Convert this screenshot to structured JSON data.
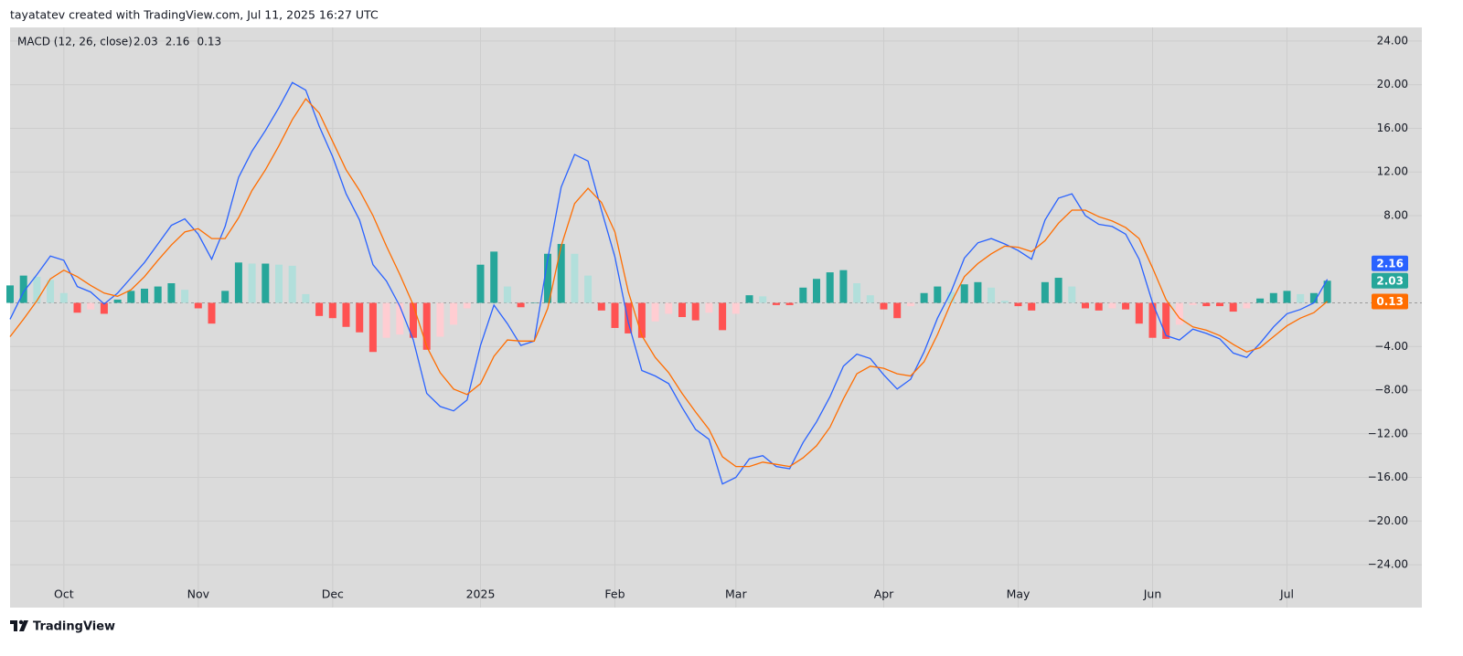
{
  "header": {
    "text": "tayatatev created with TradingView.com, Jul 11, 2025 16:27 UTC"
  },
  "chart_data": {
    "type": "macd",
    "title": "MACD (12, 26, close)",
    "categories": [
      null,
      null,
      null,
      null,
      "Oct",
      null,
      null,
      null,
      null,
      null,
      null,
      null,
      null,
      null,
      "Nov",
      null,
      null,
      null,
      null,
      null,
      null,
      null,
      null,
      null,
      "Dec",
      null,
      null,
      null,
      null,
      null,
      null,
      null,
      null,
      null,
      null,
      "2025",
      null,
      null,
      null,
      null,
      null,
      null,
      null,
      null,
      null,
      "Feb",
      null,
      null,
      null,
      null,
      null,
      null,
      null,
      null,
      "Mar",
      null,
      null,
      null,
      null,
      null,
      null,
      null,
      null,
      null,
      null,
      "Apr",
      null,
      null,
      null,
      null,
      null,
      null,
      null,
      null,
      null,
      "May",
      null,
      null,
      null,
      null,
      null,
      null,
      null,
      null,
      null,
      "Jun",
      null,
      null,
      null,
      null,
      null,
      null,
      null,
      null,
      null,
      "Jul",
      null,
      null,
      null
    ],
    "series": [
      {
        "type": "histogram",
        "color": "#26a69a",
        "colors": [
          "#26a69a",
          "#b2dfdb",
          "#ffcdd2",
          "#ff5252"
        ],
        "values": [
          1.6,
          2.5,
          2.4,
          2.1,
          0.9,
          -0.9,
          -0.6,
          -1.0,
          0.3,
          1.1,
          1.3,
          1.5,
          1.8,
          1.2,
          -0.5,
          -1.9,
          1.1,
          3.7,
          3.6,
          3.6,
          3.5,
          3.4,
          0.8,
          -1.2,
          -1.4,
          -2.2,
          -2.7,
          -4.5,
          -3.2,
          -2.9,
          -3.2,
          -4.3,
          -3.1,
          -2.0,
          -0.5,
          3.5,
          4.7,
          1.5,
          -0.4,
          0.0,
          4.5,
          5.4,
          4.5,
          2.5,
          -0.7,
          -2.3,
          -2.8,
          -3.2,
          -1.7,
          -1.0,
          -1.3,
          -1.6,
          -0.9,
          -2.5,
          -1.0,
          0.7,
          0.6,
          -0.2,
          -0.2,
          1.4,
          2.2,
          2.8,
          3.0,
          1.8,
          0.7,
          -0.6,
          -1.4,
          -0.3,
          0.9,
          1.5,
          1.0,
          1.7,
          1.9,
          1.4,
          0.2,
          -0.3,
          -0.7,
          1.9,
          2.3,
          1.5,
          -0.5,
          -0.7,
          -0.5,
          -0.6,
          -1.9,
          -3.2,
          -3.3,
          -2.0,
          -0.2,
          -0.3,
          -0.3,
          -0.8,
          -0.5,
          0.4,
          0.9,
          1.1,
          0.8,
          0.9,
          2.03
        ]
      },
      {
        "type": "line",
        "color": "#2962ff",
        "values": [
          -1.5,
          1.0,
          2.6,
          4.3,
          3.9,
          1.5,
          1.0,
          -0.1,
          0.9,
          2.3,
          3.7,
          5.4,
          7.1,
          7.7,
          6.3,
          4.0,
          7.0,
          11.5,
          13.9,
          15.8,
          17.9,
          20.2,
          19.5,
          16.2,
          13.4,
          10.0,
          7.6,
          3.5,
          2.0,
          -0.3,
          -3.4,
          -8.3,
          -9.5,
          -9.9,
          -8.9,
          -3.9,
          -0.2,
          -1.9,
          -3.9,
          -3.5,
          4.0,
          10.6,
          13.6,
          13.0,
          8.5,
          4.2,
          -1.8,
          -6.2,
          -6.7,
          -7.4,
          -9.6,
          -11.6,
          -12.5,
          -16.6,
          -16.0,
          -14.3,
          -14.0,
          -15.0,
          -15.2,
          -12.8,
          -10.9,
          -8.6,
          -5.8,
          -4.7,
          -5.1,
          -6.6,
          -7.9,
          -7.0,
          -4.5,
          -1.4,
          1.0,
          4.1,
          5.5,
          5.9,
          5.4,
          4.8,
          4.0,
          7.6,
          9.6,
          10.0,
          8.0,
          7.2,
          7.0,
          6.3,
          4.0,
          0.0,
          -3.0,
          -3.4,
          -2.4,
          -2.8,
          -3.3,
          -4.6,
          -5.0,
          -3.7,
          -2.2,
          -1.0,
          -0.6,
          0.0,
          2.16
        ]
      },
      {
        "type": "line",
        "color": "#ff6d00",
        "values": [
          -3.1,
          -1.5,
          0.2,
          2.2,
          3.0,
          2.4,
          1.6,
          0.9,
          0.6,
          1.2,
          2.4,
          3.9,
          5.3,
          6.5,
          6.8,
          5.9,
          5.9,
          7.8,
          10.3,
          12.2,
          14.4,
          16.8,
          18.7,
          17.4,
          14.8,
          12.2,
          10.3,
          8.0,
          5.2,
          2.6,
          -0.2,
          -4.0,
          -6.4,
          -7.9,
          -8.4,
          -7.4,
          -4.9,
          -3.4,
          -3.5,
          -3.5,
          -0.5,
          5.2,
          9.1,
          10.5,
          9.2,
          6.5,
          1.0,
          -3.0,
          -5.0,
          -6.4,
          -8.3,
          -10.0,
          -11.6,
          -14.1,
          -15.0,
          -15.0,
          -14.6,
          -14.8,
          -15.0,
          -14.2,
          -13.1,
          -11.4,
          -8.8,
          -6.5,
          -5.8,
          -6.0,
          -6.5,
          -6.7,
          -5.4,
          -2.9,
          0.0,
          2.4,
          3.6,
          4.5,
          5.2,
          5.1,
          4.7,
          5.7,
          7.3,
          8.5,
          8.5,
          7.9,
          7.5,
          6.9,
          5.9,
          3.2,
          0.3,
          -1.4,
          -2.2,
          -2.5,
          -3.0,
          -3.8,
          -4.5,
          -4.1,
          -3.1,
          -2.1,
          -1.4,
          -0.9,
          0.13
        ]
      }
    ],
    "ylim": [
      -27.93,
      25.25
    ],
    "yticks": [
      {
        "value": 24,
        "label": "24.00"
      },
      {
        "value": 20,
        "label": "20.00"
      },
      {
        "value": 16,
        "label": "16.00"
      },
      {
        "value": 12,
        "label": "12.00"
      },
      {
        "value": 8,
        "label": "8.00"
      },
      {
        "value": -4,
        "label": "−4.00"
      },
      {
        "value": -8,
        "label": "−8.00"
      },
      {
        "value": -12,
        "label": "−12.00"
      },
      {
        "value": -16,
        "label": "−16.00"
      },
      {
        "value": -20,
        "label": "−20.00"
      },
      {
        "value": -24,
        "label": "−24.00"
      }
    ],
    "grid": true,
    "background": "#dbdbdb"
  },
  "footer": {
    "brand": "TradingView"
  }
}
